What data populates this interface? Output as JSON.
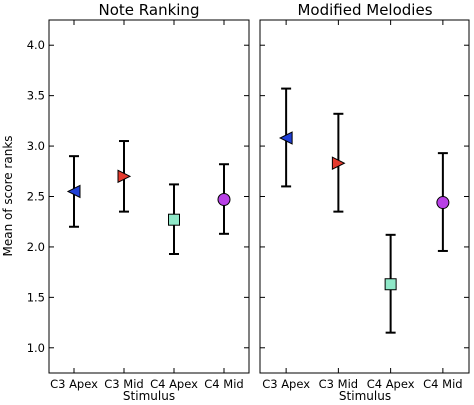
{
  "chart_data": [
    {
      "type": "scatter",
      "title": "Note Ranking",
      "xlabel": "Stimulus",
      "ylabel": "Mean of score ranks",
      "ylim": [
        0.75,
        4.25
      ],
      "yticks": [
        "1.0",
        "1.5",
        "2.0",
        "2.5",
        "3.0",
        "3.5",
        "4.0"
      ],
      "categories": [
        "C3 Apex",
        "C3 Mid",
        "C4 Apex",
        "C4 Mid"
      ],
      "points": [
        {
          "category": "C3 Apex",
          "mean": 2.55,
          "low": 2.2,
          "high": 2.9,
          "marker": "triangle-left",
          "color": "#1f3fd6"
        },
        {
          "category": "C3 Mid",
          "mean": 2.7,
          "low": 2.35,
          "high": 3.05,
          "marker": "triangle-right",
          "color": "#e53a2e"
        },
        {
          "category": "C4 Apex",
          "mean": 2.27,
          "low": 1.93,
          "high": 2.62,
          "marker": "square",
          "color": "#8fe8c8"
        },
        {
          "category": "C4 Mid",
          "mean": 2.47,
          "low": 2.13,
          "high": 2.82,
          "marker": "circle",
          "color": "#b840e6"
        }
      ],
      "grid": false
    },
    {
      "type": "scatter",
      "title": "Modified Melodies",
      "xlabel": "Stimulus",
      "ylabel": "",
      "ylim": [
        0.75,
        4.25
      ],
      "yticks": [],
      "categories": [
        "C3 Apex",
        "C3 Mid",
        "C4 Apex",
        "C4 Mid"
      ],
      "points": [
        {
          "category": "C3 Apex",
          "mean": 3.08,
          "low": 2.6,
          "high": 3.57,
          "marker": "triangle-left",
          "color": "#1f3fd6"
        },
        {
          "category": "C3 Mid",
          "mean": 2.83,
          "low": 2.35,
          "high": 3.32,
          "marker": "triangle-right",
          "color": "#e53a2e"
        },
        {
          "category": "C4 Apex",
          "mean": 1.63,
          "low": 1.15,
          "high": 2.12,
          "marker": "square",
          "color": "#8fe8c8"
        },
        {
          "category": "C4 Mid",
          "mean": 2.44,
          "low": 1.96,
          "high": 2.93,
          "marker": "circle",
          "color": "#b840e6"
        }
      ],
      "grid": false
    }
  ]
}
